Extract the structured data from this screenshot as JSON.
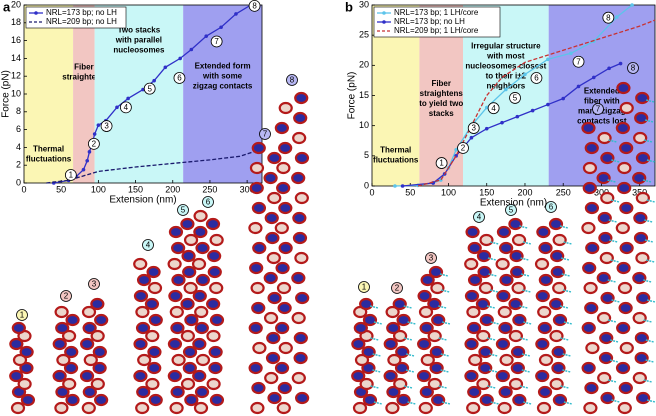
{
  "chart_data": [
    {
      "type": "line",
      "panel_label": "a",
      "x_label": "Extension (nm)",
      "y_label": "Force (pN)",
      "xlim": [
        0,
        320
      ],
      "ylim": [
        0,
        20
      ],
      "xticks": [
        0,
        50,
        100,
        150,
        200,
        250,
        300
      ],
      "yticks": [
        0,
        2,
        4,
        6,
        8,
        10,
        12,
        14,
        16,
        18,
        20
      ],
      "legend": "top-left",
      "regions": [
        {
          "from": 0,
          "to": 66,
          "color": "#fbf6b4",
          "label": [
            "Thermal",
            "fluctuations"
          ]
        },
        {
          "from": 66,
          "to": 95,
          "color": "#f2c6c2",
          "label": [
            "Fiber",
            "straightens"
          ]
        },
        {
          "from": 95,
          "to": 214,
          "color": "#c9f7f7",
          "label": [
            "Two stacks",
            "with parallel",
            "nucleosomes"
          ]
        },
        {
          "from": 214,
          "to": 320,
          "color": "#9f9ff0",
          "label": [
            "Extended form",
            "with some",
            "zigzag contacts"
          ]
        }
      ],
      "series": [
        {
          "name": "NRL=173 bp; no LH",
          "color": "#3030c8",
          "dash": false,
          "marker": true,
          "x": [
            40,
            60,
            70,
            80,
            85,
            88,
            92,
            95,
            100,
            110,
            125,
            140,
            160,
            175,
            190,
            210,
            225,
            245,
            265,
            285,
            305
          ],
          "values": [
            0,
            0.3,
            0.7,
            1.5,
            2.5,
            3.5,
            4.5,
            5.5,
            6.5,
            7,
            8.5,
            9.5,
            10.5,
            11.5,
            13,
            14,
            15,
            16.5,
            17.5,
            19,
            20
          ]
        },
        {
          "name": "NRL=209 bp; no LH",
          "color": "#1a1a6e",
          "dash": true,
          "marker": false,
          "x": [
            30,
            60,
            80,
            100,
            150,
            200,
            250,
            290,
            320
          ],
          "values": [
            0,
            0.3,
            0.8,
            1.3,
            1.8,
            2.2,
            2.6,
            3,
            3.8
          ]
        }
      ],
      "annotations": [
        {
          "label": "1",
          "x": 63,
          "y": 0.9,
          "color": "#fbf6b4"
        },
        {
          "label": "2",
          "x": 94,
          "y": 4.4,
          "color": "#f2c6c2"
        },
        {
          "label": "3",
          "x": 111,
          "y": 6.4,
          "color": "#f2c6c2"
        },
        {
          "label": "4",
          "x": 137,
          "y": 8.5,
          "color": "#c9f7f7"
        },
        {
          "label": "5",
          "x": 169,
          "y": 10.6,
          "color": "#c9f7f7"
        },
        {
          "label": "6",
          "x": 209,
          "y": 11.8,
          "color": "#c9f7f7"
        },
        {
          "label": "7",
          "x": 259,
          "y": 15.9,
          "color": "#b8b8f4"
        },
        {
          "label": "8",
          "x": 310,
          "y": 19.9,
          "color": "#b8b8f4"
        }
      ]
    },
    {
      "type": "line",
      "panel_label": "b",
      "x_label": "Extension (nm)",
      "y_label": "Force (pN)",
      "xlim": [
        0,
        370
      ],
      "ylim": [
        0,
        30
      ],
      "xticks": [
        0,
        50,
        100,
        150,
        200,
        250,
        300,
        350
      ],
      "yticks": [
        0,
        5,
        10,
        15,
        20,
        25,
        30
      ],
      "legend": "top-left",
      "regions": [
        {
          "from": 0,
          "to": 62,
          "color": "#fbf6b4",
          "label": [
            "Thermal",
            "fluctuations"
          ]
        },
        {
          "from": 62,
          "to": 119,
          "color": "#f2c6c2",
          "label": [
            "Fiber",
            "straightens",
            "to yield two",
            "stacks"
          ]
        },
        {
          "from": 119,
          "to": 231,
          "color": "#c9f7f7",
          "label": [
            "Irregular structure",
            "with most",
            "nucleosomes closest",
            "to their i±2",
            "neighbors"
          ]
        },
        {
          "from": 231,
          "to": 370,
          "color": "#9f9ff0",
          "label": [
            "Extended",
            "fiber with",
            "many zigzag",
            "contacts lost"
          ]
        }
      ],
      "series": [
        {
          "name": "NRL=173 bp; 1 LH/core",
          "color": "#5cc4ea",
          "dash": false,
          "marker": true,
          "x": [
            30,
            60,
            80,
            90,
            95,
            100,
            110,
            130,
            150,
            175,
            200,
            230,
            260,
            290,
            320,
            340
          ],
          "values": [
            0,
            0.1,
            0.5,
            1,
            2,
            3,
            6,
            10,
            13,
            16,
            18.5,
            21,
            22,
            24,
            28,
            30
          ]
        },
        {
          "name": "NRL=173 bp; no LH",
          "color": "#3030c8",
          "dash": false,
          "marker": true,
          "x": [
            40,
            80,
            95,
            110,
            130,
            150,
            170,
            190,
            210,
            230,
            250,
            270,
            290,
            310,
            325
          ],
          "values": [
            0,
            0.5,
            2,
            5,
            8,
            9.5,
            10.5,
            11.5,
            12.5,
            13.5,
            14.5,
            16.5,
            18,
            19.5,
            20.3
          ]
        },
        {
          "name": "NRL=209 bp; 1 LH/core",
          "color": "#c83232",
          "dash": true,
          "marker": false,
          "x": [
            60,
            90,
            110,
            130,
            150,
            170,
            200,
            250,
            300,
            350,
            370
          ],
          "values": [
            0,
            1,
            5,
            10,
            15,
            18,
            20.5,
            22.5,
            24.5,
            26.5,
            27.5
          ]
        }
      ],
      "annotations": [
        {
          "label": "1",
          "x": 91,
          "y": 3.8,
          "color": "#fbf6b4"
        },
        {
          "label": "2",
          "x": 119,
          "y": 6.3,
          "color": "#f2c6c2"
        },
        {
          "label": "3",
          "x": 133,
          "y": 9.6,
          "color": "#f2c6c2"
        },
        {
          "label": "4",
          "x": 159,
          "y": 12.9,
          "color": "#c9f7f7"
        },
        {
          "label": "5",
          "x": 187,
          "y": 14.6,
          "color": "#c9f7f7"
        },
        {
          "label": "6",
          "x": 215,
          "y": 17.9,
          "color": "#c9f7f7"
        },
        {
          "label": "7",
          "x": 270,
          "y": 20.6,
          "color": "#b8b8f4"
        },
        {
          "label": "8",
          "x": 309,
          "y": 27.9,
          "color": "#b8b8f4"
        }
      ]
    }
  ]
}
